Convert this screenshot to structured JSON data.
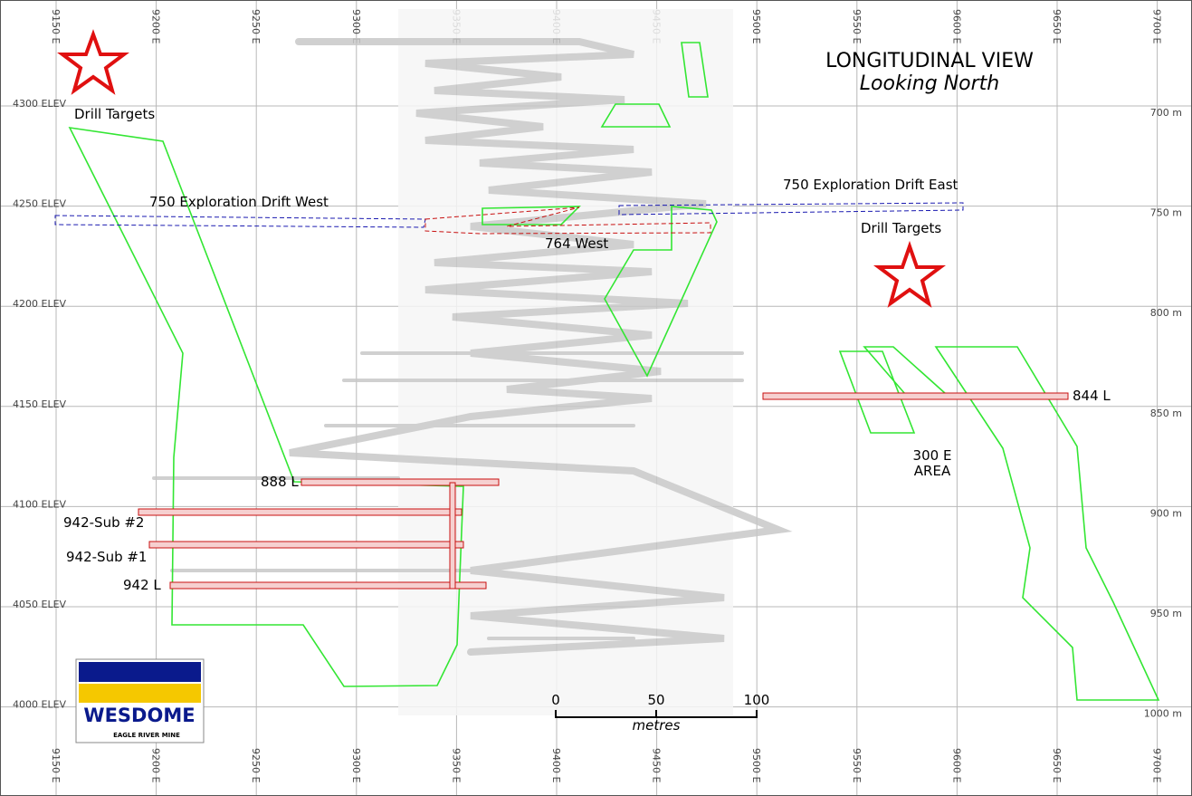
{
  "title": "LONGITUDINAL VIEW",
  "subtitle": "Looking North",
  "grid": {
    "eastings": [
      "9150 E",
      "9200 E",
      "9250 E",
      "9300 E",
      "9350 E",
      "9400 E",
      "9450 E",
      "9500 E",
      "9550 E",
      "9600 E",
      "9650 E",
      "9700 E"
    ],
    "elevations": [
      "4300 ELEV",
      "4250 ELEV",
      "4200 ELEV",
      "4150 ELEV",
      "4100 ELEV",
      "4050 ELEV",
      "4000 ELEV"
    ],
    "depths": [
      "700 m",
      "750 m",
      "800 m",
      "850 m",
      "900 m",
      "950 m",
      "1000 m"
    ]
  },
  "annotations": [
    "Drill Targets",
    "750 Exploration Drift West",
    "750 Exploration Drift East",
    "764 West",
    "Drill Targets",
    "844 L",
    "300 E",
    "AREA",
    "888 L",
    "942-Sub #2",
    "942-Sub #1",
    "942 L"
  ],
  "scale": {
    "ticks": [
      "0",
      "50",
      "100"
    ],
    "unit": "metres"
  },
  "logo": {
    "name": "WESDOME",
    "mine": "EAGLE RIVER MINE"
  }
}
